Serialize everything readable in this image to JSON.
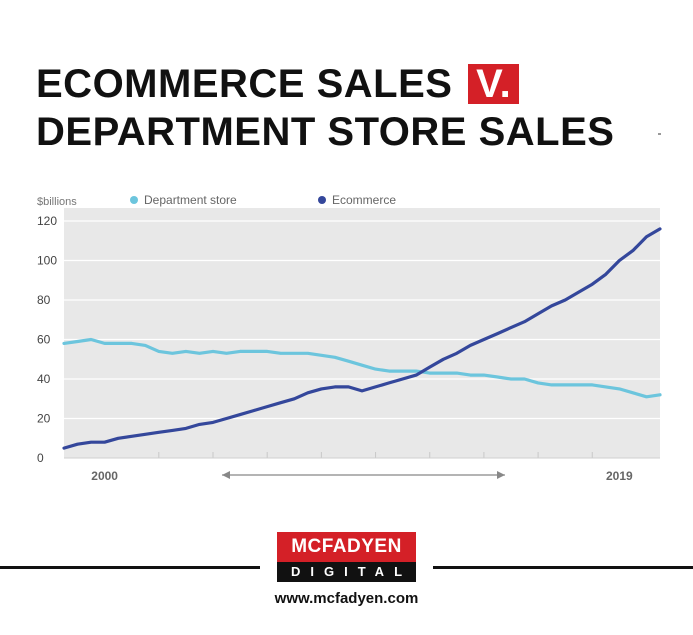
{
  "header": {
    "title_line1": "ECOMMERCE SALES",
    "title_badge": "V.",
    "title_line2": "DEPARTMENT STORE SALES"
  },
  "footer": {
    "brand_top": "MCFADYEN",
    "brand_bottom": "DIGITAL",
    "website": "www.mcfadyen.com"
  },
  "colors": {
    "department_store": "#6cc5dd",
    "ecommerce": "#34479b",
    "plot_background": "#e8e8e8",
    "brand_red": "#d42027"
  },
  "chart_data": {
    "type": "line",
    "ylabel": "$billions",
    "ylim": [
      0,
      120
    ],
    "yticks": [
      0,
      20,
      40,
      60,
      80,
      100,
      120
    ],
    "xlim": [
      1998.5,
      2020.5
    ],
    "xtick_labels": [
      {
        "x": 2000,
        "label": "2000"
      },
      {
        "x": 2019,
        "label": "2019"
      }
    ],
    "grid": true,
    "legend": "top",
    "series": [
      {
        "name": "Department store",
        "color": "#6cc5dd",
        "points": [
          [
            1998.5,
            58
          ],
          [
            1999.0,
            59
          ],
          [
            1999.5,
            60
          ],
          [
            2000.0,
            58
          ],
          [
            2000.5,
            58
          ],
          [
            2001.0,
            58
          ],
          [
            2001.5,
            57
          ],
          [
            2002.0,
            54
          ],
          [
            2002.5,
            53
          ],
          [
            2003.0,
            54
          ],
          [
            2003.5,
            53
          ],
          [
            2004.0,
            54
          ],
          [
            2004.5,
            53
          ],
          [
            2005.0,
            54
          ],
          [
            2005.5,
            54
          ],
          [
            2006.0,
            54
          ],
          [
            2006.5,
            53
          ],
          [
            2007.0,
            53
          ],
          [
            2007.5,
            53
          ],
          [
            2008.0,
            52
          ],
          [
            2008.5,
            51
          ],
          [
            2009.0,
            49
          ],
          [
            2009.5,
            47
          ],
          [
            2010.0,
            45
          ],
          [
            2010.5,
            44
          ],
          [
            2011.0,
            44
          ],
          [
            2011.5,
            44
          ],
          [
            2012.0,
            43
          ],
          [
            2012.5,
            43
          ],
          [
            2013.0,
            43
          ],
          [
            2013.5,
            42
          ],
          [
            2014.0,
            42
          ],
          [
            2014.5,
            41
          ],
          [
            2015.0,
            40
          ],
          [
            2015.5,
            40
          ],
          [
            2016.0,
            38
          ],
          [
            2016.5,
            37
          ],
          [
            2017.0,
            37
          ],
          [
            2017.5,
            37
          ],
          [
            2018.0,
            37
          ],
          [
            2018.5,
            36
          ],
          [
            2019.0,
            35
          ],
          [
            2019.5,
            33
          ],
          [
            2020.0,
            31
          ],
          [
            2020.5,
            32
          ]
        ]
      },
      {
        "name": "Ecommerce",
        "color": "#34479b",
        "points": [
          [
            1998.5,
            5
          ],
          [
            1999.0,
            7
          ],
          [
            1999.5,
            8
          ],
          [
            2000.0,
            8
          ],
          [
            2000.5,
            10
          ],
          [
            2001.0,
            11
          ],
          [
            2001.5,
            12
          ],
          [
            2002.0,
            13
          ],
          [
            2002.5,
            14
          ],
          [
            2003.0,
            15
          ],
          [
            2003.5,
            17
          ],
          [
            2004.0,
            18
          ],
          [
            2004.5,
            20
          ],
          [
            2005.0,
            22
          ],
          [
            2005.5,
            24
          ],
          [
            2006.0,
            26
          ],
          [
            2006.5,
            28
          ],
          [
            2007.0,
            30
          ],
          [
            2007.5,
            33
          ],
          [
            2008.0,
            35
          ],
          [
            2008.5,
            36
          ],
          [
            2009.0,
            36
          ],
          [
            2009.5,
            34
          ],
          [
            2010.0,
            36
          ],
          [
            2010.5,
            38
          ],
          [
            2011.0,
            40
          ],
          [
            2011.5,
            42
          ],
          [
            2012.0,
            46
          ],
          [
            2012.5,
            50
          ],
          [
            2013.0,
            53
          ],
          [
            2013.5,
            57
          ],
          [
            2014.0,
            60
          ],
          [
            2014.5,
            63
          ],
          [
            2015.0,
            66
          ],
          [
            2015.5,
            69
          ],
          [
            2016.0,
            73
          ],
          [
            2016.5,
            77
          ],
          [
            2017.0,
            80
          ],
          [
            2017.5,
            84
          ],
          [
            2018.0,
            88
          ],
          [
            2018.5,
            93
          ],
          [
            2019.0,
            100
          ],
          [
            2019.5,
            105
          ],
          [
            2020.0,
            112
          ],
          [
            2020.5,
            116
          ]
        ]
      }
    ]
  }
}
